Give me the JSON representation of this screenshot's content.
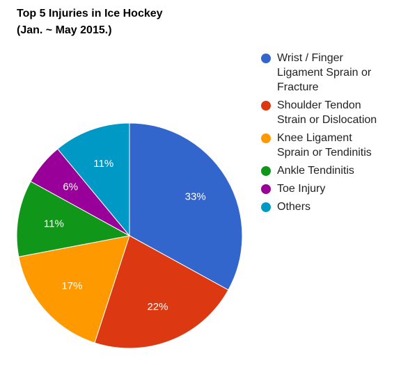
{
  "chart_data": {
    "type": "pie",
    "title": [
      "Top 5 Injuries in Ice Hockey",
      "(Jan. ~ May 2015.)"
    ],
    "slices": [
      {
        "label": [
          "Wrist / Finger",
          "Ligament Sprain or",
          "Fracture"
        ],
        "value": 33,
        "display": "33%",
        "color": "#3366cc"
      },
      {
        "label": [
          "Shoulder Tendon",
          "Strain or Dislocation"
        ],
        "value": 22,
        "display": "22%",
        "color": "#dc3912"
      },
      {
        "label": [
          "Knee Ligament",
          "Sprain or Tendinitis"
        ],
        "value": 17,
        "display": "17%",
        "color": "#ff9900"
      },
      {
        "label": [
          "Ankle Tendinitis"
        ],
        "value": 11,
        "display": "11%",
        "color": "#109618"
      },
      {
        "label": [
          "Toe Injury"
        ],
        "value": 6,
        "display": "6%",
        "color": "#990099"
      },
      {
        "label": [
          "Others"
        ],
        "value": 11,
        "display": "11%",
        "color": "#0099c6"
      }
    ],
    "start_angle_deg": 0,
    "direction": "clockwise",
    "legend_position": "right"
  }
}
